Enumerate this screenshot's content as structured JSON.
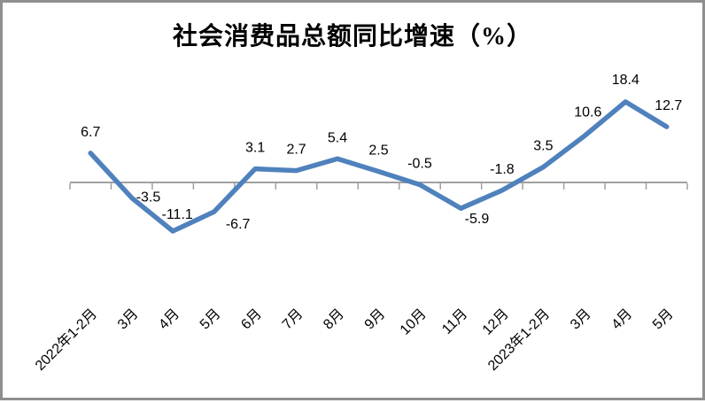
{
  "window": {
    "background_color": "#ffffff",
    "border_color": "#8f8f8f"
  },
  "chart_data": {
    "type": "line",
    "title": "社会消费品总额同比增速（%）",
    "categories": [
      "2022年1-2月",
      "3月",
      "4月",
      "5月",
      "6月",
      "7月",
      "8月",
      "9月",
      "10月",
      "11月",
      "12月",
      "2023年1-2月",
      "3月",
      "4月",
      "5月"
    ],
    "values": [
      6.7,
      -3.5,
      -11.1,
      -6.7,
      3.1,
      2.7,
      5.4,
      2.5,
      -0.5,
      -5.9,
      -1.8,
      3.5,
      10.6,
      18.4,
      12.7
    ],
    "data_labels": [
      "6.7",
      "-3.5",
      "-11.1",
      "-6.7",
      "3.1",
      "2.7",
      "5.4",
      "2.5",
      "-0.5",
      "-5.9",
      "-1.8",
      "3.5",
      "10.6",
      "18.4",
      "12.7"
    ],
    "xlabel": "",
    "ylabel": "",
    "x_axis_crosses_at": 0,
    "grid": false,
    "legend": "none",
    "x_tick_rotation": -45,
    "line_color": "#4F81BD",
    "axis_color": "#A0A0A0",
    "text_color": "#000000"
  }
}
